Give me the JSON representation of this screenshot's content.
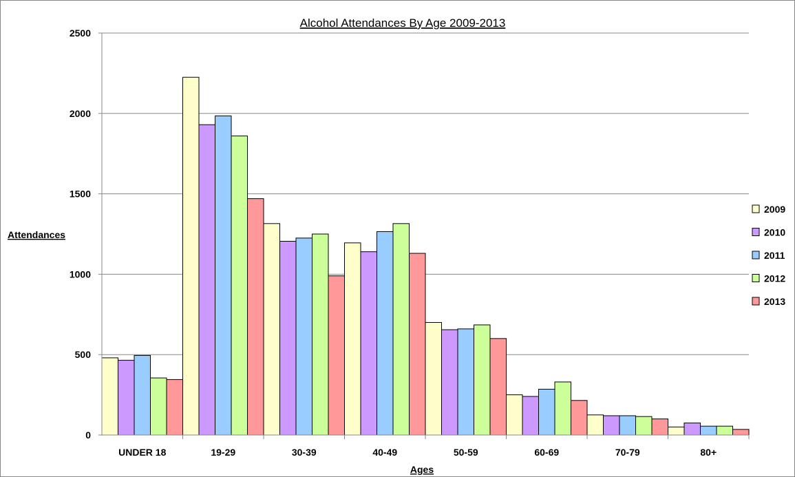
{
  "chart_data": {
    "type": "bar",
    "title": "Alcohol Attendances By Age 2009-2013",
    "xlabel": "Ages",
    "ylabel": "Attendances",
    "ylim": [
      0,
      2500
    ],
    "yticks": [
      0,
      500,
      1000,
      1500,
      2000,
      2500
    ],
    "grid": true,
    "legend_position": "right",
    "categories": [
      "UNDER 18",
      "19-29",
      "30-39",
      "40-49",
      "50-59",
      "60-69",
      "70-79",
      "80+"
    ],
    "series": [
      {
        "name": "2009",
        "color": "#FFFFCC",
        "values": [
          480,
          2225,
          1315,
          1195,
          700,
          250,
          125,
          50
        ]
      },
      {
        "name": "2010",
        "color": "#CC99FF",
        "values": [
          465,
          1930,
          1205,
          1140,
          655,
          240,
          120,
          75
        ]
      },
      {
        "name": "2011",
        "color": "#99CCFF",
        "values": [
          495,
          1985,
          1225,
          1265,
          660,
          285,
          120,
          55
        ]
      },
      {
        "name": "2012",
        "color": "#CCFF99",
        "values": [
          355,
          1860,
          1250,
          1315,
          685,
          330,
          115,
          55
        ]
      },
      {
        "name": "2013",
        "color": "#FF9999",
        "values": [
          345,
          1470,
          990,
          1130,
          600,
          215,
          100,
          35
        ]
      }
    ]
  }
}
